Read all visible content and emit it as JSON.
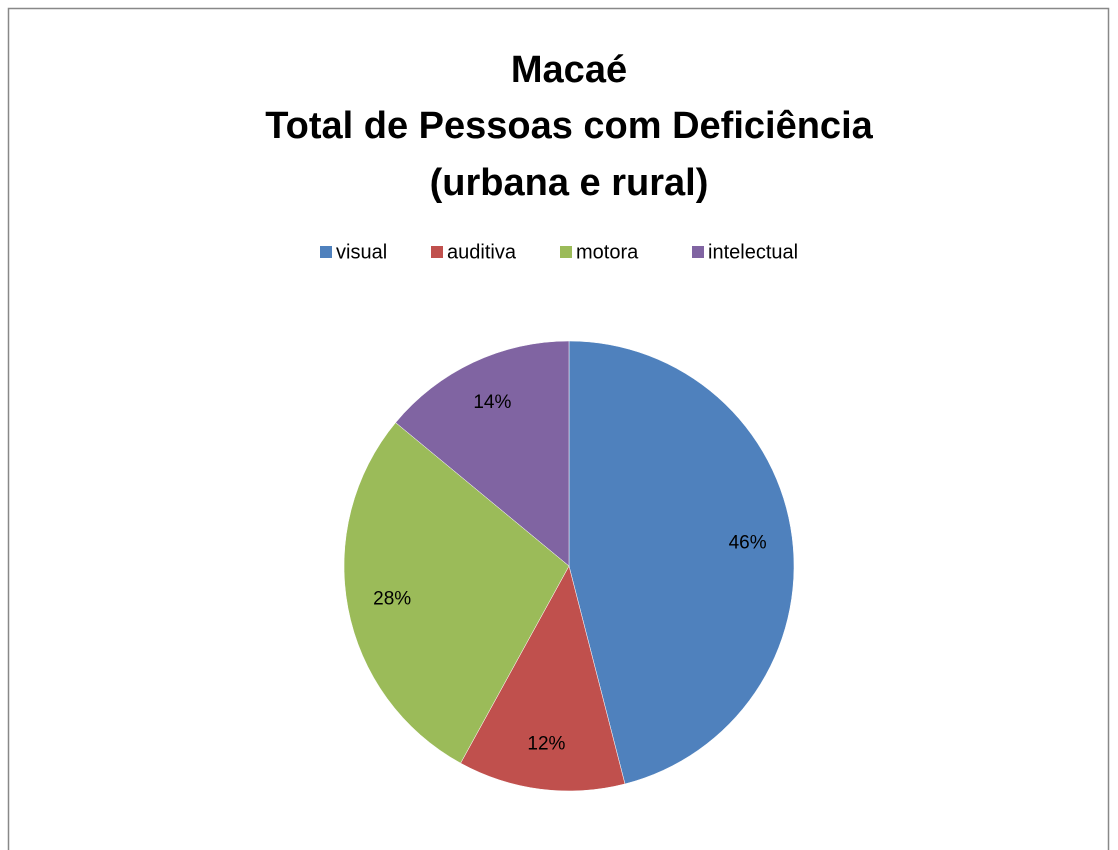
{
  "chart_data": {
    "type": "pie",
    "title": [
      "Macaé",
      "Total de Pessoas com Deficiência",
      "(urbana e rural)"
    ],
    "categories": [
      "visual",
      "auditiva",
      "motora",
      "intelectual"
    ],
    "values": [
      46,
      12,
      28,
      14
    ],
    "value_labels": [
      "46%",
      "12%",
      "28%",
      "14%"
    ],
    "colors": [
      "#4f81bd",
      "#c0504d",
      "#9bbb59",
      "#8064a2"
    ],
    "legend": "top"
  }
}
